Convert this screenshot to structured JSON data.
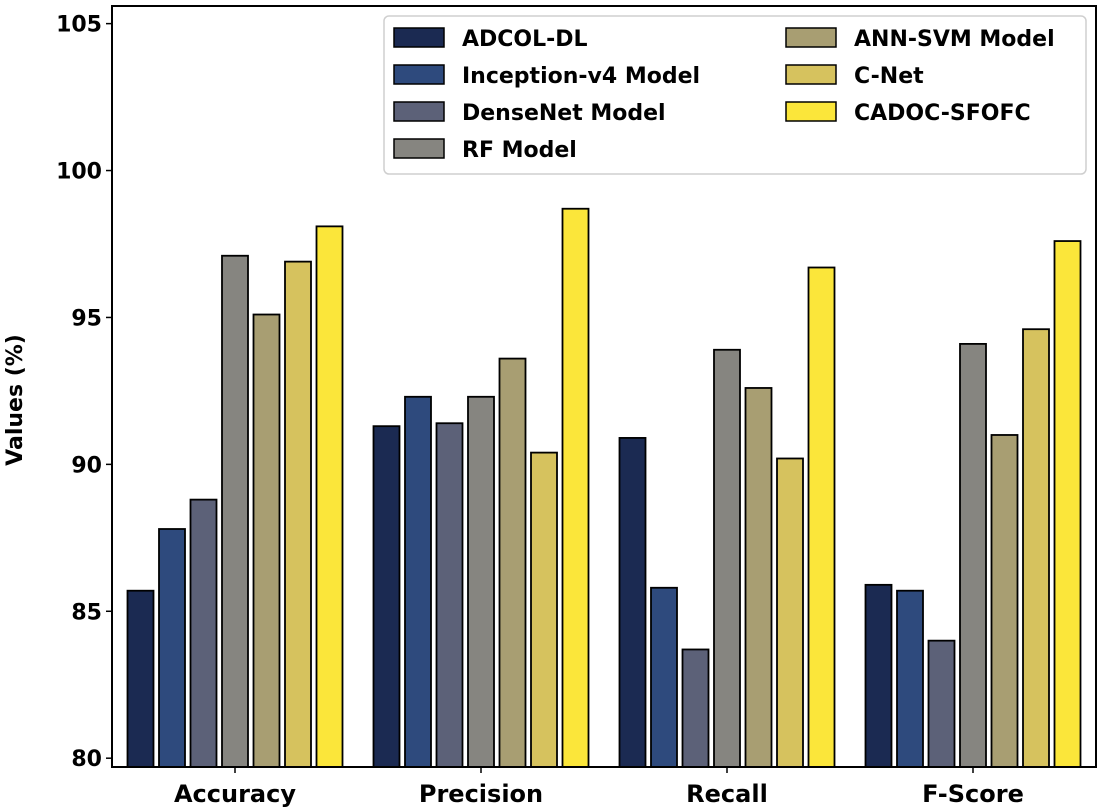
{
  "chart_data": {
    "type": "bar",
    "title": "",
    "xlabel": "",
    "ylabel": "Values (%)",
    "ylim": [
      79.7,
      105.6
    ],
    "yticks": [
      80,
      85,
      90,
      95,
      100,
      105
    ],
    "categories": [
      "Accuracy",
      "Precision",
      "Recall",
      "F-Score"
    ],
    "series": [
      {
        "name": "ADCOL-DL",
        "color": "#1b2a52",
        "values": [
          85.7,
          91.3,
          90.9,
          85.9
        ]
      },
      {
        "name": "Inception-v4 Model",
        "color": "#2e4a7d",
        "values": [
          87.8,
          92.3,
          85.8,
          85.7
        ]
      },
      {
        "name": "DenseNet Model",
        "color": "#5c6178",
        "values": [
          88.8,
          91.4,
          83.7,
          84.0
        ]
      },
      {
        "name": "RF Model",
        "color": "#868580",
        "values": [
          97.1,
          92.3,
          93.9,
          94.1
        ]
      },
      {
        "name": "ANN-SVM Model",
        "color": "#a89e72",
        "values": [
          95.1,
          93.6,
          92.6,
          91.0
        ]
      },
      {
        "name": "C-Net",
        "color": "#d6c25e",
        "values": [
          96.9,
          90.4,
          90.2,
          94.6
        ]
      },
      {
        "name": "CADOC-SFOFC",
        "color": "#fbe63a",
        "values": [
          98.1,
          98.7,
          96.7,
          97.6
        ]
      }
    ],
    "legend": {
      "location": "top-right",
      "columns": 2
    },
    "grid": false
  }
}
